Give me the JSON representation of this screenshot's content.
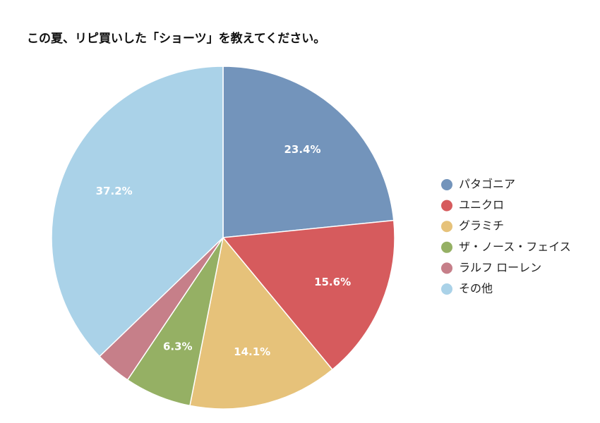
{
  "chart_data": {
    "type": "pie",
    "title": "この夏、リピ買いした「ショーツ」を教えてください。",
    "categories": [
      "パタゴニア",
      "ユニクロ",
      "グラミチ",
      "ザ・ノース・フェイス",
      "ラルフ ローレン",
      "その他"
    ],
    "values": [
      23.4,
      15.6,
      14.1,
      6.3,
      3.4,
      37.2
    ],
    "data_labels": [
      "23.4%",
      "15.6%",
      "14.1%",
      "6.3%",
      "",
      "37.2%"
    ],
    "colors": [
      "#7394bb",
      "#d65b5d",
      "#e6c27a",
      "#95b064",
      "#c67f89",
      "#aad2e8"
    ],
    "start": "12 o'clock",
    "direction": "clockwise",
    "legend": "right"
  }
}
